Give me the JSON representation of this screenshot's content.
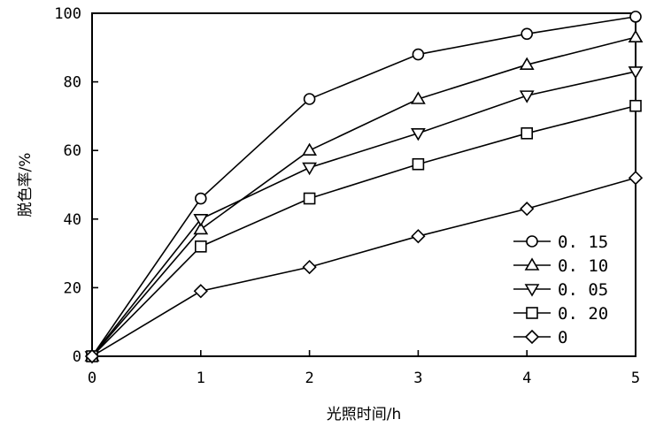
{
  "chart_data": {
    "type": "line",
    "xlabel": "光照时间/h",
    "ylabel": "脱色率/%",
    "xlim": [
      0,
      5
    ],
    "ylim": [
      0,
      100
    ],
    "x_ticks": [
      "0",
      "1",
      "2",
      "3",
      "4",
      "5"
    ],
    "y_ticks": [
      "0",
      "20",
      "40",
      "60",
      "80",
      "100"
    ],
    "grid": false,
    "legend_position": "bottom-right",
    "x": [
      0,
      1,
      2,
      3,
      4,
      5
    ],
    "series": [
      {
        "name": "0. 15",
        "marker": "circle",
        "values": [
          0,
          46,
          75,
          88,
          94,
          99
        ]
      },
      {
        "name": "0. 10",
        "marker": "triangle-up",
        "values": [
          0,
          37,
          60,
          75,
          85,
          93
        ]
      },
      {
        "name": "0. 05",
        "marker": "triangle-down",
        "values": [
          0,
          40,
          55,
          65,
          76,
          83
        ]
      },
      {
        "name": "0. 20",
        "marker": "square",
        "values": [
          0,
          32,
          46,
          56,
          65,
          73
        ]
      },
      {
        "name": "0",
        "marker": "diamond",
        "values": [
          0,
          19,
          26,
          35,
          43,
          52
        ]
      }
    ]
  }
}
